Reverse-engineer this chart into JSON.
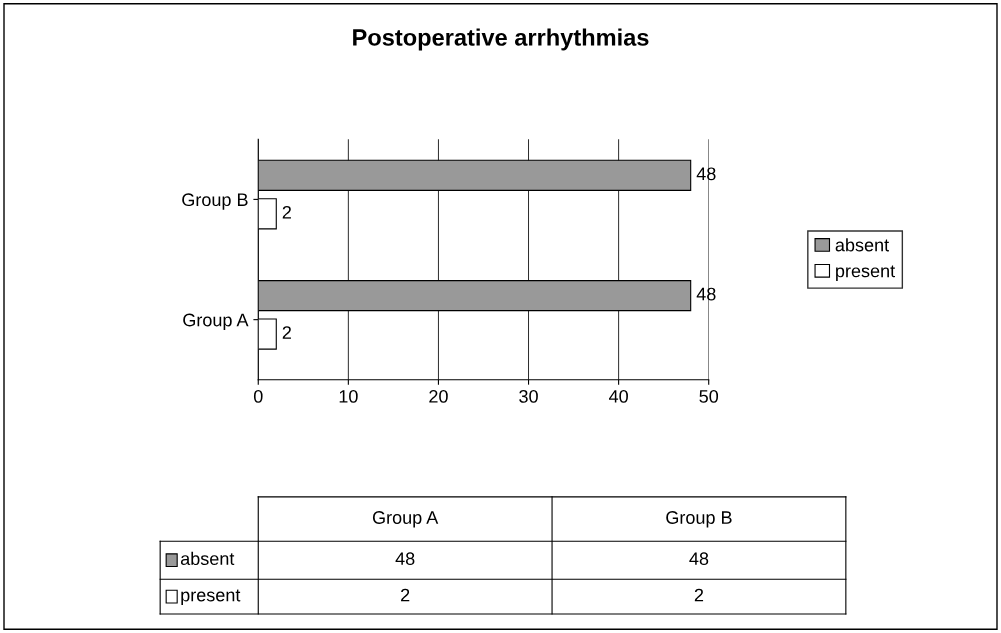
{
  "chart_data": {
    "type": "bar",
    "orientation": "horizontal",
    "title": "Postoperative arrhythmias",
    "categories": [
      "Group B",
      "Group A"
    ],
    "series": [
      {
        "name": "absent",
        "color": "#999999",
        "values": [
          48,
          48
        ],
        "value_labels": [
          "48",
          "48"
        ]
      },
      {
        "name": "present",
        "color": "#ffffff",
        "values": [
          2,
          2
        ],
        "value_labels": [
          "2",
          "2"
        ]
      }
    ],
    "xlim": [
      0,
      50
    ],
    "xticks": [
      0,
      10,
      20,
      30,
      40,
      50
    ],
    "grid": "x",
    "legend": "right"
  }
}
